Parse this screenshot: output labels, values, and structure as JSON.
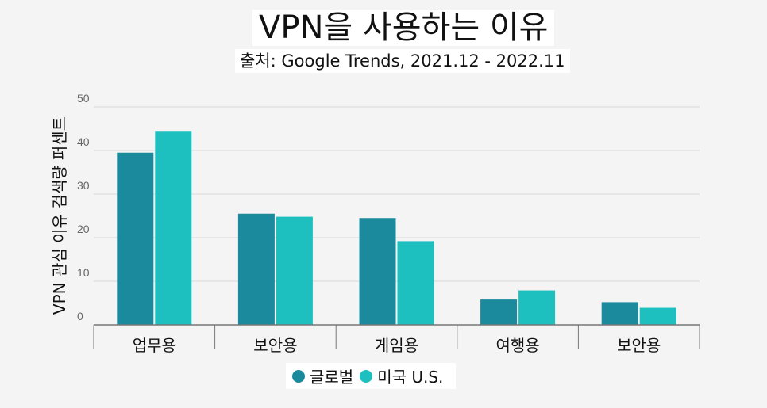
{
  "chart_data": {
    "type": "bar",
    "title": "VPN을 사용하는 이유",
    "subtitle": "출처: Google Trends, 2021.12 - 2022.11",
    "xlabel": "",
    "ylabel": "VPN 관심 이유 검색량 퍼센트",
    "categories": [
      "업무용",
      "보안용",
      "게임용",
      "여행용",
      "보안용"
    ],
    "series": [
      {
        "name": "글로벌",
        "color": "#1b8a9c",
        "values": [
          39.5,
          25.5,
          24.5,
          5.8,
          5.2
        ]
      },
      {
        "name": "미국 U.S.",
        "color": "#1ebfbf",
        "values": [
          44.5,
          24.8,
          19.2,
          7.9,
          3.9
        ]
      }
    ],
    "ylim": [
      0,
      50
    ],
    "yticks": [
      0,
      10,
      20,
      30,
      40,
      50
    ],
    "grid": true,
    "legend_position": "bottom"
  }
}
